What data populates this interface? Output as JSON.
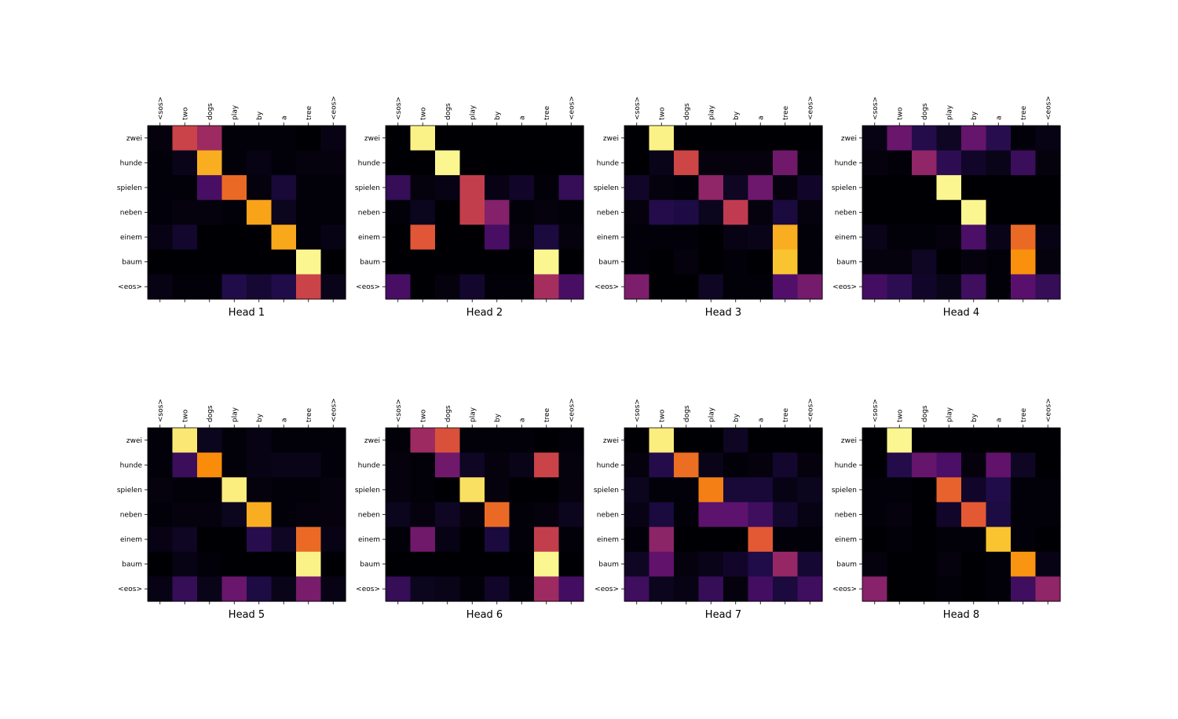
{
  "chart_data": [
    {
      "type": "heatmap",
      "title": "Head 1",
      "x_tokens": [
        "<sos>",
        "two",
        "dogs",
        "play",
        "by",
        "a",
        "tree",
        "<eos>"
      ],
      "y_tokens": [
        "zwei",
        "hunde",
        "spielen",
        "neben",
        "einem",
        "baum",
        "<eos>"
      ],
      "values": [
        [
          0.02,
          0.55,
          0.43,
          0.01,
          0.01,
          0.01,
          0.0,
          0.03
        ],
        [
          0.01,
          0.04,
          0.82,
          0.01,
          0.03,
          0.01,
          0.02,
          0.02
        ],
        [
          0.01,
          0.01,
          0.22,
          0.67,
          0.02,
          0.1,
          0.01,
          0.01
        ],
        [
          0.01,
          0.02,
          0.02,
          0.01,
          0.8,
          0.05,
          0.01,
          0.01
        ],
        [
          0.03,
          0.08,
          0.0,
          0.0,
          0.0,
          0.81,
          0.01,
          0.03
        ],
        [
          0.0,
          0.0,
          0.0,
          0.0,
          0.0,
          0.0,
          0.98,
          0.0
        ],
        [
          0.03,
          0.01,
          0.01,
          0.13,
          0.09,
          0.13,
          0.55,
          0.04
        ]
      ]
    },
    {
      "type": "heatmap",
      "title": "Head 2",
      "x_tokens": [
        "<sos>",
        "two",
        "dogs",
        "play",
        "by",
        "a",
        "tree",
        "<eos>"
      ],
      "y_tokens": [
        "zwei",
        "hunde",
        "spielen",
        "neben",
        "einem",
        "baum",
        "<eos>"
      ],
      "values": [
        [
          0.0,
          0.97,
          0.0,
          0.0,
          0.0,
          0.0,
          0.0,
          0.0
        ],
        [
          0.0,
          0.0,
          0.98,
          0.0,
          0.0,
          0.0,
          0.0,
          0.0
        ],
        [
          0.18,
          0.02,
          0.03,
          0.53,
          0.03,
          0.07,
          0.01,
          0.18
        ],
        [
          0.01,
          0.05,
          0.0,
          0.53,
          0.37,
          0.01,
          0.02,
          0.01
        ],
        [
          0.0,
          0.62,
          0.0,
          0.0,
          0.22,
          0.02,
          0.11,
          0.02
        ],
        [
          0.0,
          0.0,
          0.0,
          0.0,
          0.0,
          0.0,
          0.98,
          0.0
        ],
        [
          0.22,
          0.0,
          0.02,
          0.08,
          0.01,
          0.01,
          0.45,
          0.22
        ]
      ]
    },
    {
      "type": "heatmap",
      "title": "Head 3",
      "x_tokens": [
        "<sos>",
        "two",
        "dogs",
        "play",
        "by",
        "a",
        "tree",
        "<eos>"
      ],
      "y_tokens": [
        "zwei",
        "hunde",
        "spielen",
        "neben",
        "einem",
        "baum",
        "<eos>"
      ],
      "values": [
        [
          0.0,
          0.97,
          0.0,
          0.0,
          0.0,
          0.0,
          0.0,
          0.0
        ],
        [
          0.0,
          0.04,
          0.56,
          0.02,
          0.02,
          0.02,
          0.32,
          0.01
        ],
        [
          0.07,
          0.02,
          0.01,
          0.4,
          0.06,
          0.31,
          0.02,
          0.07
        ],
        [
          0.02,
          0.14,
          0.12,
          0.05,
          0.52,
          0.02,
          0.11,
          0.02
        ],
        [
          0.01,
          0.01,
          0.01,
          0.0,
          0.03,
          0.04,
          0.82,
          0.01
        ],
        [
          0.01,
          0.0,
          0.02,
          0.0,
          0.01,
          0.0,
          0.87,
          0.01
        ],
        [
          0.35,
          0.0,
          0.0,
          0.06,
          0.01,
          0.01,
          0.24,
          0.33
        ]
      ]
    },
    {
      "type": "heatmap",
      "title": "Head 4",
      "x_tokens": [
        "<sos>",
        "two",
        "dogs",
        "play",
        "by",
        "a",
        "tree",
        "<eos>"
      ],
      "y_tokens": [
        "zwei",
        "hunde",
        "spielen",
        "neben",
        "einem",
        "baum",
        "<eos>"
      ],
      "values": [
        [
          0.03,
          0.3,
          0.14,
          0.06,
          0.29,
          0.15,
          0.01,
          0.03
        ],
        [
          0.02,
          0.01,
          0.4,
          0.16,
          0.07,
          0.04,
          0.19,
          0.02
        ],
        [
          0.0,
          0.0,
          0.0,
          0.98,
          0.0,
          0.0,
          0.0,
          0.0
        ],
        [
          0.0,
          0.0,
          0.0,
          0.0,
          0.98,
          0.0,
          0.0,
          0.0
        ],
        [
          0.04,
          0.01,
          0.01,
          0.02,
          0.23,
          0.04,
          0.67,
          0.03
        ],
        [
          0.02,
          0.02,
          0.06,
          0.0,
          0.02,
          0.01,
          0.76,
          0.02
        ],
        [
          0.21,
          0.16,
          0.07,
          0.04,
          0.2,
          0.01,
          0.26,
          0.18
        ]
      ]
    },
    {
      "type": "heatmap",
      "title": "Head 5",
      "x_tokens": [
        "<sos>",
        "two",
        "dogs",
        "play",
        "by",
        "a",
        "tree",
        "<eos>"
      ],
      "y_tokens": [
        "zwei",
        "hunde",
        "spielen",
        "neben",
        "einem",
        "baum",
        "<eos>"
      ],
      "values": [
        [
          0.01,
          0.95,
          0.05,
          0.01,
          0.03,
          0.01,
          0.01,
          0.01
        ],
        [
          0.01,
          0.19,
          0.75,
          0.01,
          0.03,
          0.04,
          0.04,
          0.01
        ],
        [
          0.02,
          0.01,
          0.01,
          0.96,
          0.02,
          0.01,
          0.01,
          0.02
        ],
        [
          0.01,
          0.02,
          0.02,
          0.05,
          0.82,
          0.01,
          0.02,
          0.02
        ],
        [
          0.03,
          0.06,
          0.0,
          0.0,
          0.15,
          0.06,
          0.67,
          0.03
        ],
        [
          0.0,
          0.03,
          0.01,
          0.0,
          0.0,
          0.0,
          0.97,
          0.0
        ],
        [
          0.03,
          0.18,
          0.04,
          0.3,
          0.12,
          0.04,
          0.34,
          0.03
        ]
      ]
    },
    {
      "type": "heatmap",
      "title": "Head 6",
      "x_tokens": [
        "<sos>",
        "two",
        "dogs",
        "play",
        "by",
        "a",
        "tree",
        "<eos>"
      ],
      "y_tokens": [
        "zwei",
        "hunde",
        "spielen",
        "neben",
        "einem",
        "baum",
        "<eos>"
      ],
      "values": [
        [
          0.01,
          0.43,
          0.6,
          0.01,
          0.01,
          0.01,
          0.0,
          0.01
        ],
        [
          0.02,
          0.01,
          0.32,
          0.06,
          0.02,
          0.04,
          0.55,
          0.02
        ],
        [
          0.02,
          0.01,
          0.0,
          0.93,
          0.02,
          0.0,
          0.0,
          0.02
        ],
        [
          0.05,
          0.02,
          0.06,
          0.02,
          0.67,
          0.01,
          0.02,
          0.05
        ],
        [
          0.01,
          0.32,
          0.03,
          0.0,
          0.11,
          0.01,
          0.53,
          0.01
        ],
        [
          0.0,
          0.0,
          0.0,
          0.0,
          0.0,
          0.0,
          0.98,
          0.0
        ],
        [
          0.18,
          0.05,
          0.04,
          0.01,
          0.07,
          0.01,
          0.43,
          0.21
        ]
      ]
    },
    {
      "type": "heatmap",
      "title": "Head 7",
      "x_tokens": [
        "<sos>",
        "two",
        "dogs",
        "play",
        "by",
        "a",
        "tree",
        "<eos>"
      ],
      "y_tokens": [
        "zwei",
        "hunde",
        "spielen",
        "neben",
        "einem",
        "baum",
        "<eos>"
      ],
      "values": [
        [
          0.0,
          0.96,
          0.0,
          0.0,
          0.06,
          0.0,
          0.0,
          0.0
        ],
        [
          0.02,
          0.14,
          0.68,
          0.04,
          0.01,
          0.02,
          0.08,
          0.02
        ],
        [
          0.05,
          0.01,
          0.01,
          0.72,
          0.1,
          0.1,
          0.03,
          0.05
        ],
        [
          0.03,
          0.11,
          0.01,
          0.27,
          0.27,
          0.2,
          0.08,
          0.03
        ],
        [
          0.01,
          0.39,
          0.0,
          0.0,
          0.0,
          0.63,
          0.01,
          0.01
        ],
        [
          0.06,
          0.28,
          0.02,
          0.04,
          0.07,
          0.13,
          0.41,
          0.09
        ],
        [
          0.2,
          0.05,
          0.03,
          0.18,
          0.02,
          0.21,
          0.11,
          0.2
        ]
      ]
    },
    {
      "type": "heatmap",
      "title": "Head 8",
      "x_tokens": [
        "<sos>",
        "two",
        "dogs",
        "play",
        "by",
        "a",
        "tree",
        "<eos>"
      ],
      "y_tokens": [
        "zwei",
        "hunde",
        "spielen",
        "neben",
        "einem",
        "baum",
        "<eos>"
      ],
      "values": [
        [
          0.0,
          0.98,
          0.0,
          0.0,
          0.0,
          0.0,
          0.0,
          0.0
        ],
        [
          0.0,
          0.14,
          0.29,
          0.23,
          0.02,
          0.28,
          0.06,
          0.0
        ],
        [
          0.01,
          0.01,
          0.0,
          0.65,
          0.07,
          0.13,
          0.01,
          0.01
        ],
        [
          0.01,
          0.02,
          0.0,
          0.07,
          0.63,
          0.12,
          0.01,
          0.01
        ],
        [
          0.0,
          0.01,
          0.0,
          0.01,
          0.01,
          0.87,
          0.01,
          0.0
        ],
        [
          0.02,
          0.0,
          0.0,
          0.02,
          0.0,
          0.01,
          0.77,
          0.03
        ],
        [
          0.38,
          0.0,
          0.0,
          0.01,
          0.0,
          0.01,
          0.2,
          0.4
        ]
      ]
    }
  ]
}
